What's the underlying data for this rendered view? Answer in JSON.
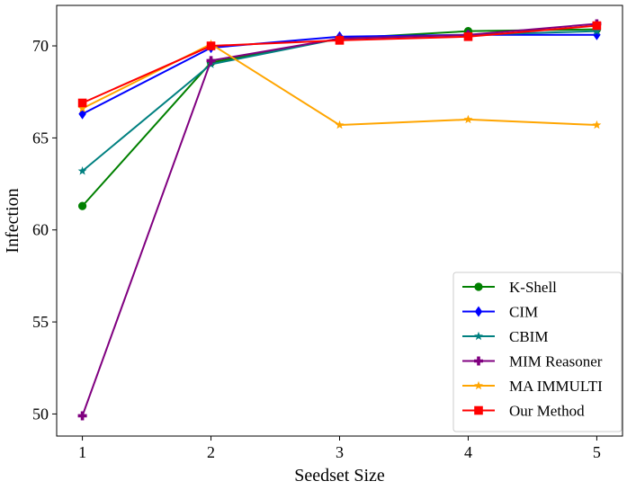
{
  "chart_data": {
    "type": "line",
    "title": "",
    "xlabel": "Seedset Size",
    "ylabel": "Infection",
    "x": [
      1,
      2,
      3,
      4,
      5
    ],
    "xlim": [
      0.8,
      5.2
    ],
    "ylim": [
      48.8,
      72.2
    ],
    "xticks": [
      1,
      2,
      3,
      4,
      5
    ],
    "yticks": [
      50,
      55,
      60,
      65,
      70
    ],
    "grid": false,
    "legend_position": "bottom-right",
    "series": [
      {
        "name": "K-Shell",
        "color": "#008000",
        "marker": "circle",
        "values": [
          61.3,
          69.1,
          70.4,
          70.8,
          70.9
        ]
      },
      {
        "name": "CIM",
        "color": "#0000ff",
        "marker": "diamond",
        "values": [
          66.3,
          69.9,
          70.5,
          70.6,
          70.6
        ]
      },
      {
        "name": "CBIM",
        "color": "#008080",
        "marker": "star",
        "values": [
          63.2,
          69.0,
          70.4,
          70.6,
          70.8
        ]
      },
      {
        "name": "MIM Reasoner",
        "color": "#800080",
        "marker": "plus",
        "values": [
          49.9,
          69.2,
          70.4,
          70.6,
          71.2
        ]
      },
      {
        "name": "MA IMMULTI",
        "color": "#ffa500",
        "marker": "star",
        "values": [
          66.6,
          70.1,
          65.7,
          66.0,
          65.7
        ]
      },
      {
        "name": "Our Method",
        "color": "#ff0000",
        "marker": "square",
        "values": [
          66.9,
          70.0,
          70.3,
          70.5,
          71.1
        ]
      }
    ]
  }
}
